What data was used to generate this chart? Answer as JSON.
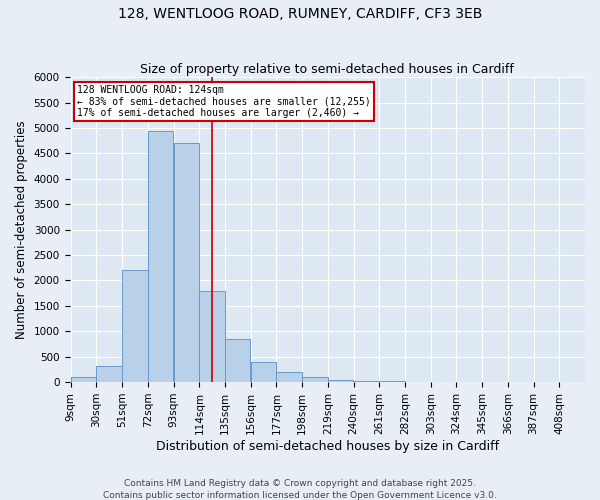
{
  "title1": "128, WENTLOOG ROAD, RUMNEY, CARDIFF, CF3 3EB",
  "title2": "Size of property relative to semi-detached houses in Cardiff",
  "xlabel": "Distribution of semi-detached houses by size in Cardiff",
  "ylabel": "Number of semi-detached properties",
  "annotation_title": "128 WENTLOOG ROAD: 124sqm",
  "annotation_line1": "← 83% of semi-detached houses are smaller (12,255)",
  "annotation_line2": "17% of semi-detached houses are larger (2,460) →",
  "property_size": 124,
  "bin_edges": [
    9,
    30,
    51,
    72,
    93,
    114,
    135,
    156,
    177,
    198,
    219,
    240,
    261,
    282,
    303,
    324,
    345,
    366,
    387,
    408,
    429
  ],
  "bar_values": [
    100,
    310,
    2200,
    4950,
    4700,
    1800,
    850,
    400,
    200,
    100,
    50,
    25,
    15,
    8,
    5,
    3,
    2,
    1,
    1,
    1
  ],
  "bar_color": "#b8d0e8",
  "bar_edge_color": "#6699cc",
  "vline_color": "#cc0000",
  "fig_facecolor": "#e8eef5",
  "ax_facecolor": "#dde8f2",
  "ylim": [
    0,
    6000
  ],
  "yticks": [
    0,
    500,
    1000,
    1500,
    2000,
    2500,
    3000,
    3500,
    4000,
    4500,
    5000,
    5500,
    6000
  ],
  "footer1": "Contains HM Land Registry data © Crown copyright and database right 2025.",
  "footer2": "Contains public sector information licensed under the Open Government Licence v3.0.",
  "annotation_box_color": "#cc0000",
  "title_fontsize": 10,
  "subtitle_fontsize": 9,
  "axis_label_fontsize": 8.5,
  "tick_fontsize": 7.5,
  "footer_fontsize": 6.5
}
